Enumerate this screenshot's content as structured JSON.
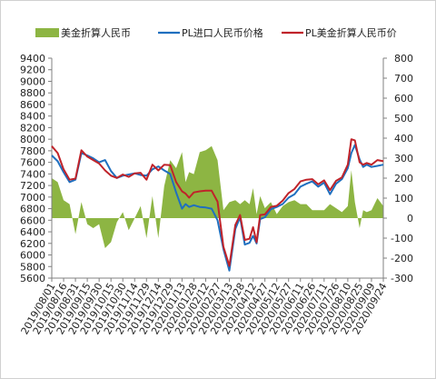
{
  "chart_data": {
    "type": "line",
    "title": "",
    "legend": [
      {
        "label": "美金折算人民币",
        "type": "area",
        "color": "#8db543",
        "axis": "right"
      },
      {
        "label": "PL进口人民币价格",
        "type": "line",
        "color": "#1f6fbf",
        "axis": "left"
      },
      {
        "label": "PL美金折算人民币价",
        "type": "line",
        "color": "#c0232a",
        "axis": "left"
      }
    ],
    "legend_position": "top",
    "left_axis": {
      "min": 5600,
      "max": 9400,
      "step": 200,
      "ticks": [
        "5600",
        "5800",
        "6000",
        "6200",
        "6400",
        "6600",
        "6800",
        "7000",
        "7200",
        "7400",
        "7600",
        "7800",
        "8000",
        "8200",
        "8400",
        "8600",
        "8800",
        "9000",
        "9200",
        "9400"
      ]
    },
    "right_axis": {
      "min": -300,
      "max": 800,
      "step": 100,
      "ticks": [
        "-300",
        "-200",
        "-100",
        "0",
        "100",
        "200",
        "300",
        "400",
        "500",
        "600",
        "700",
        "800"
      ]
    },
    "x_ticks": [
      "2019/08/01",
      "2019/08/16",
      "2019/08/31",
      "2019/09/15",
      "2019/09/30",
      "2019/10/15",
      "2019/10/30",
      "2019/11/14",
      "2019/11/29",
      "2019/12/14",
      "2019/12/29",
      "2020/01/13",
      "2020/01/28",
      "2020/02/12",
      "2020/02/27",
      "2020/03/13",
      "2020/03/28",
      "2020/04/12",
      "2020/04/27",
      "2020/05/12",
      "2020/05/27",
      "2020/06/11",
      "2020/06/26",
      "2020/07/11",
      "2020/07/26",
      "2020/08/10",
      "2020/08/25",
      "2020/09/09",
      "2020/09/24"
    ],
    "series": [
      {
        "name": "PL进口人民币价格",
        "x": [
          0,
          0.5,
          1,
          1.5,
          2,
          2.5,
          3,
          3.5,
          4,
          4.5,
          5,
          5.5,
          6,
          6.5,
          7,
          7.5,
          8,
          8.5,
          9,
          9.5,
          10,
          10.5,
          11,
          11.3,
          11.6,
          12,
          12.5,
          13,
          13.5,
          14,
          14.5,
          15,
          15.5,
          15.9,
          16.3,
          16.7,
          17,
          17.3,
          17.6,
          18,
          18.5,
          19,
          19.5,
          20,
          20.5,
          21,
          21.5,
          22,
          22.5,
          23,
          23.5,
          24,
          24.5,
          25,
          25.3,
          25.6,
          26,
          26.3,
          26.6,
          27,
          27.5,
          28
        ],
        "values": [
          7720,
          7620,
          7430,
          7260,
          7300,
          7760,
          7720,
          7670,
          7600,
          7640,
          7450,
          7330,
          7370,
          7390,
          7410,
          7380,
          7370,
          7480,
          7530,
          7460,
          7400,
          7080,
          6800,
          6880,
          6830,
          6860,
          6830,
          6820,
          6800,
          6600,
          6100,
          5730,
          6450,
          6650,
          6180,
          6210,
          6330,
          6200,
          6620,
          6650,
          6790,
          6830,
          6880,
          6990,
          7050,
          7180,
          7230,
          7270,
          7180,
          7250,
          7050,
          7230,
          7310,
          7500,
          7760,
          7900,
          7650,
          7520,
          7560,
          7520,
          7540,
          7560
        ]
      },
      {
        "name": "PL美金折算人民币价",
        "x": [
          0,
          0.5,
          1,
          1.5,
          2,
          2.5,
          3,
          3.5,
          4,
          4.5,
          5,
          5.5,
          6,
          6.5,
          7,
          7.5,
          8,
          8.5,
          9,
          9.5,
          10,
          10.5,
          11,
          11.3,
          11.6,
          12,
          12.5,
          13,
          13.5,
          14,
          14.5,
          15,
          15.5,
          15.9,
          16.3,
          16.7,
          17,
          17.3,
          17.6,
          18,
          18.5,
          19,
          19.5,
          20,
          20.5,
          21,
          21.5,
          22,
          22.5,
          23,
          23.5,
          24,
          24.5,
          25,
          25.3,
          25.6,
          26,
          26.3,
          26.6,
          27,
          27.5,
          28
        ],
        "values": [
          7880,
          7760,
          7480,
          7300,
          7320,
          7810,
          7700,
          7640,
          7580,
          7460,
          7370,
          7330,
          7390,
          7350,
          7410,
          7420,
          7300,
          7560,
          7460,
          7560,
          7550,
          7260,
          7100,
          7060,
          6990,
          7080,
          7100,
          7110,
          7110,
          6920,
          6140,
          5810,
          6520,
          6690,
          6260,
          6280,
          6480,
          6220,
          6690,
          6700,
          6830,
          6850,
          6940,
          7070,
          7140,
          7270,
          7300,
          7310,
          7220,
          7290,
          7120,
          7280,
          7340,
          7560,
          8000,
          7980,
          7600,
          7560,
          7590,
          7560,
          7640,
          7620
        ]
      },
      {
        "name": "美金折算人民币",
        "x": [
          0,
          0.5,
          1,
          1.5,
          2,
          2.5,
          3,
          3.5,
          4,
          4.5,
          5,
          5.5,
          6,
          6.5,
          7,
          7.5,
          8,
          8.5,
          9,
          9.5,
          10,
          10.5,
          11,
          11.3,
          11.6,
          12,
          12.5,
          13,
          13.5,
          14,
          14.5,
          15,
          15.5,
          15.9,
          16.3,
          16.7,
          17,
          17.3,
          17.6,
          18,
          18.5,
          19,
          19.5,
          20,
          20.5,
          21,
          21.5,
          22,
          22.5,
          23,
          23.5,
          24,
          24.5,
          25,
          25.3,
          25.6,
          26,
          26.3,
          26.6,
          27,
          27.5,
          28
        ],
        "values": [
          200,
          180,
          90,
          70,
          -80,
          80,
          -30,
          -50,
          -30,
          -150,
          -120,
          -20,
          30,
          -60,
          0,
          60,
          -100,
          110,
          -100,
          160,
          290,
          250,
          330,
          180,
          230,
          220,
          330,
          340,
          360,
          290,
          40,
          80,
          90,
          70,
          90,
          70,
          150,
          20,
          110,
          50,
          80,
          20,
          60,
          80,
          90,
          70,
          70,
          40,
          40,
          40,
          70,
          50,
          30,
          60,
          240,
          80,
          -50,
          40,
          30,
          40,
          100,
          60
        ]
      }
    ]
  }
}
